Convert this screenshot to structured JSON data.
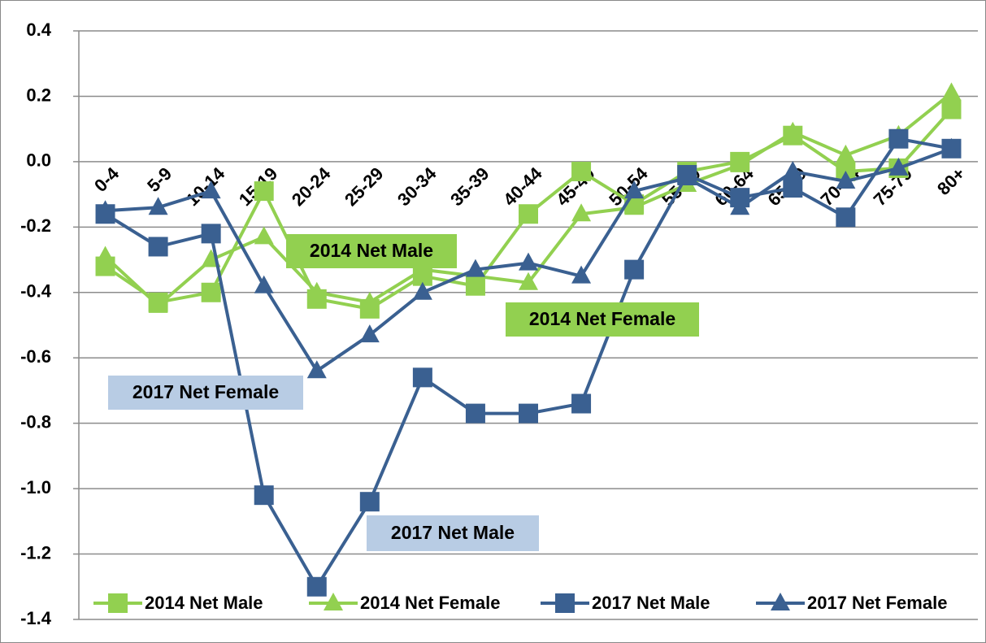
{
  "chart_data": {
    "type": "line",
    "categories": [
      "0-4",
      "5-9",
      "10-14",
      "15-19",
      "20-24",
      "25-29",
      "30-34",
      "35-39",
      "40-44",
      "45-49",
      "50-54",
      "55-59",
      "60-64",
      "65-69",
      "70-74",
      "75-79",
      "80+"
    ],
    "series": [
      {
        "name": "2014 Net Male",
        "color": "#92d050",
        "marker": "square",
        "values": [
          -0.32,
          -0.43,
          -0.4,
          -0.09,
          -0.42,
          -0.45,
          -0.35,
          -0.38,
          -0.16,
          -0.03,
          -0.13,
          -0.03,
          0.0,
          0.08,
          -0.03,
          -0.02,
          0.16
        ]
      },
      {
        "name": "2014 Net Female",
        "color": "#92d050",
        "marker": "triangle",
        "values": [
          -0.29,
          -0.44,
          -0.3,
          -0.23,
          -0.4,
          -0.43,
          -0.33,
          -0.35,
          -0.37,
          -0.16,
          -0.14,
          -0.07,
          -0.01,
          0.09,
          0.02,
          0.08,
          0.21
        ]
      },
      {
        "name": "2017 Net Male",
        "color": "#3a6091",
        "marker": "square",
        "values": [
          -0.16,
          -0.26,
          -0.22,
          -1.02,
          -1.3,
          -1.04,
          -0.66,
          -0.77,
          -0.77,
          -0.74,
          -0.33,
          -0.04,
          -0.11,
          -0.08,
          -0.17,
          0.07,
          0.04
        ]
      },
      {
        "name": "2017 Net Female",
        "color": "#3a6091",
        "marker": "triangle",
        "values": [
          -0.15,
          -0.14,
          -0.09,
          -0.38,
          -0.64,
          -0.53,
          -0.4,
          -0.33,
          -0.31,
          -0.35,
          -0.09,
          -0.05,
          -0.14,
          -0.03,
          -0.06,
          -0.02,
          0.04
        ]
      }
    ],
    "ylim": [
      -1.4,
      0.4
    ],
    "yticks": [
      0.4,
      0.2,
      {
        "value": 0,
        "label": "0.0"
      },
      -0.2,
      -0.4,
      -0.6,
      -0.8,
      {
        "value": -1,
        "label": "-1.0"
      },
      -1.2,
      -1.4
    ],
    "grid": true,
    "legend": "bottom",
    "annotations": [
      {
        "text": "2014 Net Male",
        "color": "#92d050"
      },
      {
        "text": "2014 Net Female",
        "color": "#92d050"
      },
      {
        "text": "2017 Net Female",
        "color": "#b8cce4"
      },
      {
        "text": "2017 Net Male",
        "color": "#b8cce4"
      }
    ]
  }
}
